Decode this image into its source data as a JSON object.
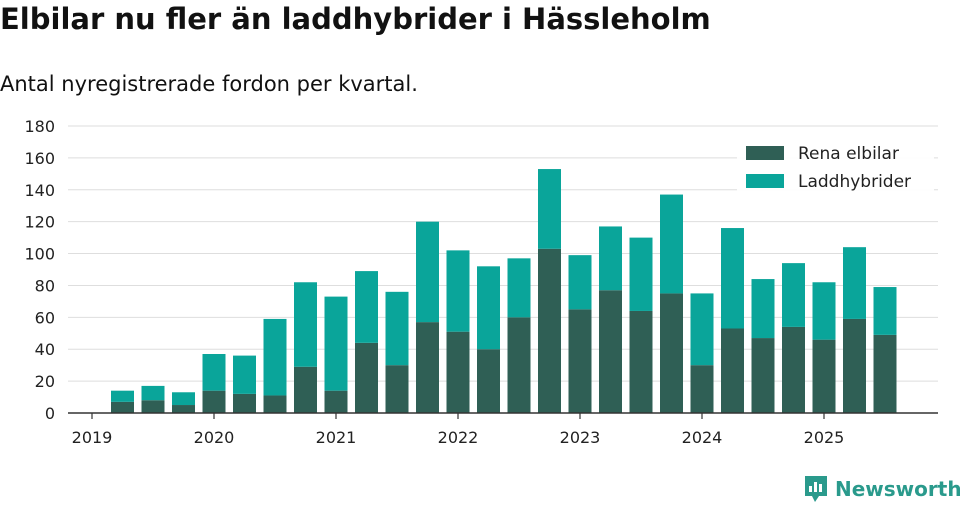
{
  "title": "Elbilar nu fler än laddhybrider i Hässleholm",
  "subtitle": "Antal nyregistrerade fordon per kvartal.",
  "brand": {
    "name": "Newsworthy",
    "icon": "newsworthy-logo-icon",
    "color": "#2a9a8c"
  },
  "chart_data": {
    "type": "bar",
    "stacked": true,
    "title": "Elbilar nu fler än laddhybrider i Hässleholm",
    "subtitle": "Antal nyregistrerade fordon per kvartal.",
    "xlabel": "",
    "ylabel": "",
    "ylim": [
      0,
      180
    ],
    "yticks": [
      0,
      20,
      40,
      60,
      80,
      100,
      120,
      140,
      160,
      180
    ],
    "xticks": [
      "2019",
      "2020",
      "2021",
      "2022",
      "2023",
      "2024",
      "2025"
    ],
    "grid": true,
    "legend": "top-right",
    "categories": [
      "2019 Q2",
      "2019 Q3",
      "2019 Q4",
      "2020 Q1",
      "2020 Q2",
      "2020 Q3",
      "2020 Q4",
      "2021 Q1",
      "2021 Q2",
      "2021 Q3",
      "2021 Q4",
      "2022 Q1",
      "2022 Q2",
      "2022 Q3",
      "2022 Q4",
      "2023 Q1",
      "2023 Q2",
      "2023 Q3",
      "2023 Q4",
      "2024 Q1",
      "2024 Q2",
      "2024 Q3",
      "2024 Q4",
      "2025 Q1",
      "2025 Q2",
      "2025 Q3"
    ],
    "series": [
      {
        "name": "Rena elbilar",
        "color": "#2f5f55",
        "values": [
          7,
          8,
          5,
          14,
          12,
          11,
          29,
          14,
          44,
          30,
          57,
          51,
          40,
          60,
          103,
          65,
          77,
          64,
          75,
          30,
          53,
          47,
          54,
          46,
          59,
          49
        ]
      },
      {
        "name": "Laddhybrider",
        "color": "#0aa59a",
        "values": [
          7,
          9,
          8,
          23,
          24,
          48,
          53,
          59,
          45,
          46,
          63,
          51,
          52,
          37,
          50,
          34,
          40,
          46,
          62,
          45,
          63,
          37,
          40,
          36,
          45,
          30
        ]
      }
    ]
  }
}
